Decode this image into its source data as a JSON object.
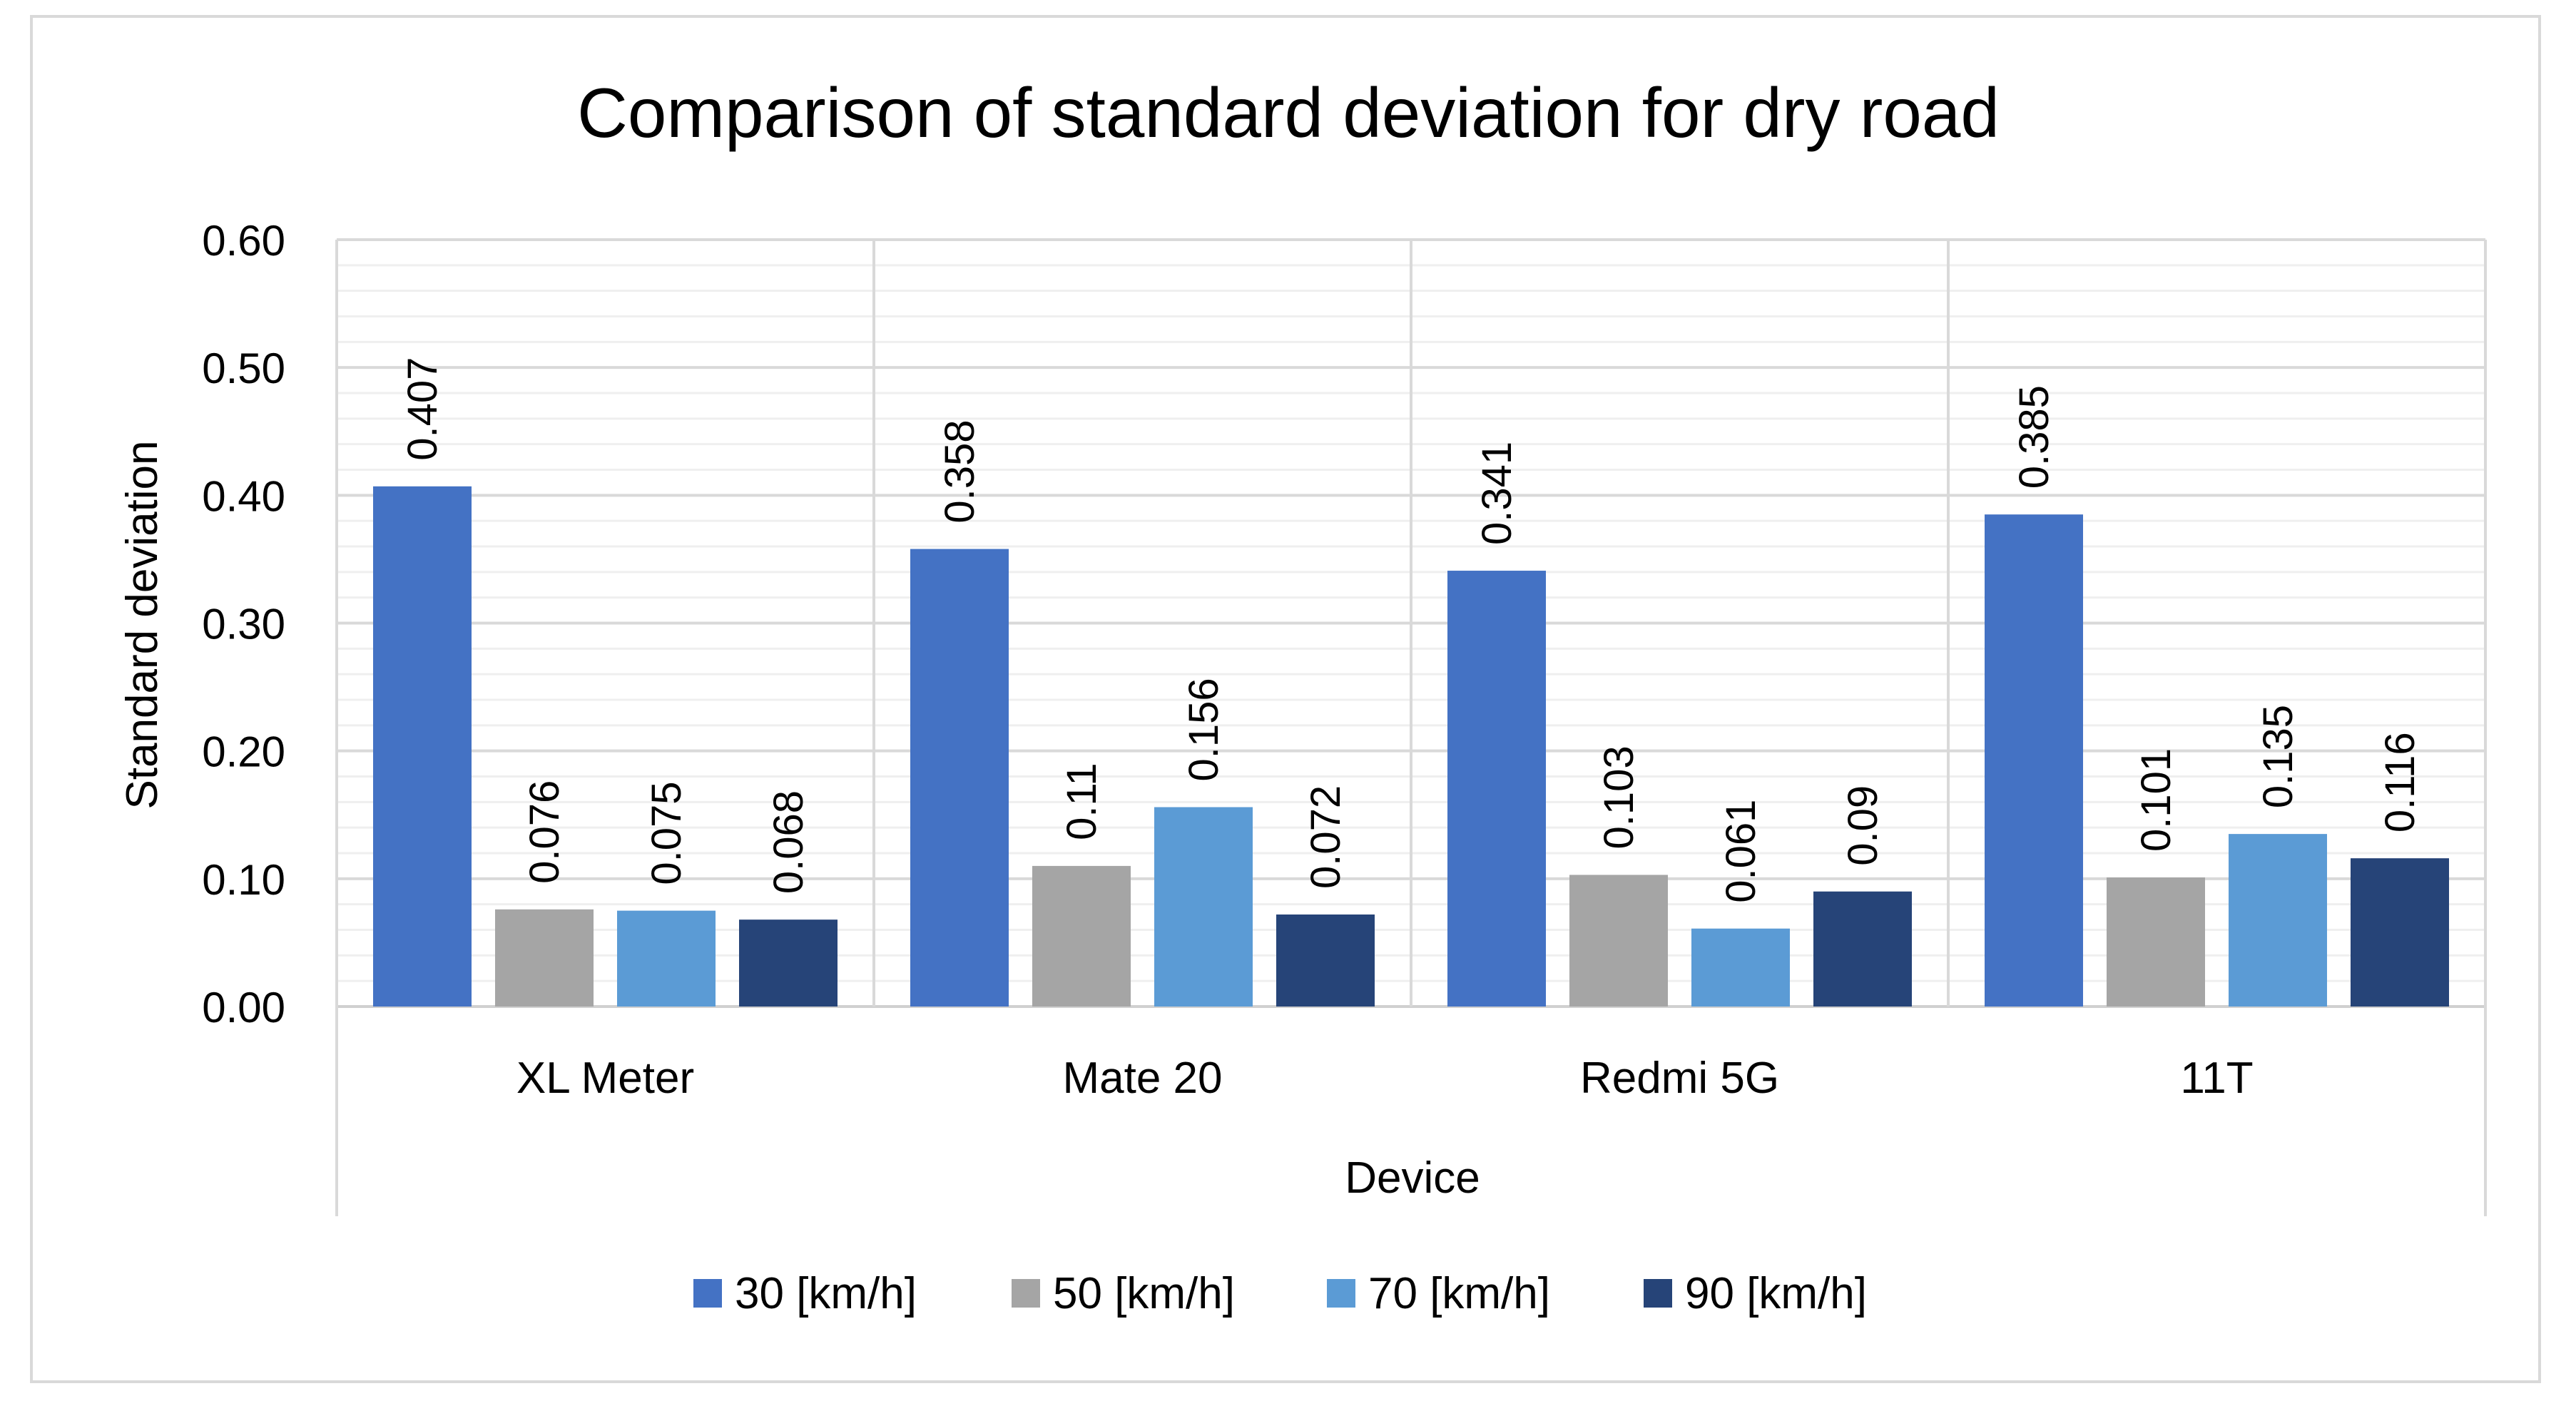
{
  "chart_data": {
    "type": "bar",
    "title": "Comparison of standard deviation for dry road",
    "xlabel": "Device",
    "ylabel": "Standard deviation",
    "ylim": [
      0,
      0.6
    ],
    "yticks": [
      "0.00",
      "0.10",
      "0.20",
      "0.30",
      "0.40",
      "0.50",
      "0.60"
    ],
    "grid": true,
    "legend_position": "bottom",
    "categories": [
      "XL Meter",
      "Mate 20",
      "Redmi 5G",
      "11T"
    ],
    "series": [
      {
        "name": "30 [km/h]",
        "color": "#4472c4",
        "values": [
          0.407,
          0.358,
          0.341,
          0.385
        ],
        "labels": [
          "0.407",
          "0.358",
          "0.341",
          "0.385"
        ]
      },
      {
        "name": "50 [km/h]",
        "color": "#a5a5a5",
        "values": [
          0.076,
          0.11,
          0.103,
          0.101
        ],
        "labels": [
          "0.076",
          "0.11",
          "0.103",
          "0.101"
        ]
      },
      {
        "name": "70 [km/h]",
        "color": "#5b9bd5",
        "values": [
          0.075,
          0.156,
          0.061,
          0.135
        ],
        "labels": [
          "0.075",
          "0.156",
          "0.061",
          "0.135"
        ]
      },
      {
        "name": "90 [km/h]",
        "color": "#264478",
        "values": [
          0.068,
          0.072,
          0.09,
          0.116
        ],
        "labels": [
          "0.068",
          "0.072",
          "0.09",
          "0.116"
        ]
      }
    ]
  }
}
